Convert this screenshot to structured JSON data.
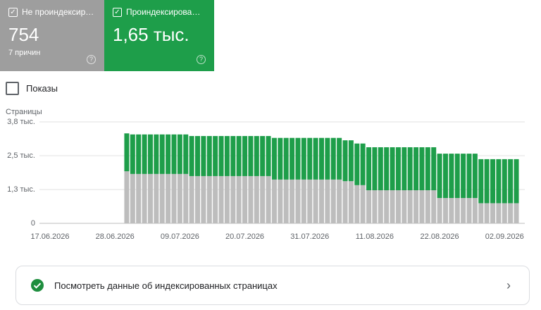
{
  "cards": [
    {
      "value": "754",
      "subtitle": "7 причин"
    },
    {
      "value": "1,65 тыс."
    }
  ],
  "checkbox_label": "Показы",
  "link_text": "Посмотреть данные об индексированных страницах",
  "chart_data": {
    "type": "stacked-bar",
    "y_label": "Страницы",
    "categories": [
      "17.06.2026",
      null,
      null,
      null,
      null,
      null,
      null,
      null,
      null,
      null,
      null,
      "28.06.2026",
      null,
      null,
      null,
      null,
      null,
      null,
      null,
      null,
      null,
      null,
      "09.07.2026",
      null,
      null,
      null,
      null,
      null,
      null,
      null,
      null,
      null,
      null,
      "20.07.2026",
      null,
      null,
      null,
      null,
      null,
      null,
      null,
      null,
      null,
      null,
      "31.07.2026",
      null,
      null,
      null,
      null,
      null,
      null,
      null,
      null,
      null,
      null,
      "11.08.2026",
      null,
      null,
      null,
      null,
      null,
      null,
      null,
      null,
      null,
      null,
      "22.08.2026",
      null,
      null,
      null,
      null,
      null,
      null,
      null,
      null,
      null,
      null,
      "02.09.2026",
      null,
      null
    ],
    "series": [
      {
        "name": "Не проиндексированные",
        "color": "#bdbdbd",
        "values": [
          0,
          0,
          0,
          0,
          0,
          0,
          0,
          0,
          0,
          0,
          0,
          0,
          0,
          1950,
          1850,
          1850,
          1850,
          1850,
          1850,
          1850,
          1850,
          1850,
          1850,
          1850,
          1770,
          1770,
          1770,
          1770,
          1770,
          1770,
          1770,
          1770,
          1770,
          1770,
          1770,
          1770,
          1770,
          1770,
          1640,
          1640,
          1640,
          1640,
          1640,
          1640,
          1640,
          1640,
          1640,
          1640,
          1640,
          1640,
          1580,
          1580,
          1430,
          1430,
          1240,
          1240,
          1240,
          1240,
          1240,
          1240,
          1240,
          1240,
          1240,
          1240,
          1240,
          1240,
          950,
          950,
          950,
          950,
          950,
          950,
          950,
          754,
          754,
          754,
          754,
          754,
          754,
          754
        ]
      },
      {
        "name": "Проиндексированные",
        "color": "#1e9e4a",
        "values": [
          0,
          0,
          0,
          0,
          0,
          0,
          0,
          0,
          0,
          0,
          0,
          0,
          0,
          1420,
          1480,
          1480,
          1480,
          1480,
          1480,
          1480,
          1480,
          1480,
          1480,
          1480,
          1500,
          1500,
          1500,
          1500,
          1500,
          1500,
          1500,
          1500,
          1500,
          1500,
          1500,
          1500,
          1500,
          1500,
          1560,
          1560,
          1560,
          1560,
          1560,
          1560,
          1560,
          1560,
          1560,
          1560,
          1560,
          1560,
          1530,
          1530,
          1560,
          1560,
          1610,
          1610,
          1610,
          1610,
          1610,
          1610,
          1610,
          1610,
          1610,
          1610,
          1610,
          1610,
          1660,
          1660,
          1660,
          1660,
          1660,
          1660,
          1660,
          1650,
          1650,
          1650,
          1650,
          1650,
          1650,
          1650
        ]
      }
    ],
    "ylim": [
      0,
      3800
    ],
    "yticks": [
      0,
      {
        "value": 1267,
        "label": "1,3 тыс."
      },
      {
        "value": 2533,
        "label": "2,5 тыс."
      },
      {
        "value": 3800,
        "label": "3,8 тыс."
      }
    ],
    "grid": true
  }
}
